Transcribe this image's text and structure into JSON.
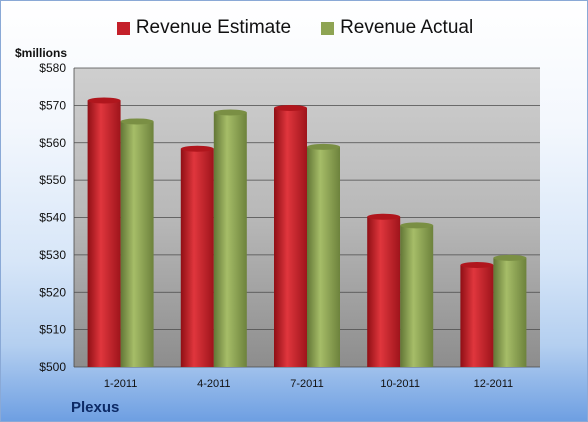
{
  "legend": {
    "estimate_label": "Revenue Estimate",
    "actual_label": "Revenue Actual"
  },
  "unit_label": "$millions",
  "company_label": "Plexus",
  "colors": {
    "estimate": "#c4202a",
    "actual": "#8ea453"
  },
  "chart_data": {
    "type": "bar",
    "title": "",
    "xlabel": "",
    "ylabel": "$millions",
    "categories": [
      "1-2011",
      "4-2011",
      "7-2011",
      "10-2011",
      "12-2011"
    ],
    "series": [
      {
        "name": "Revenue Estimate",
        "values": [
          571.3,
          558.4,
          569.3,
          540.2,
          527.3
        ]
      },
      {
        "name": "Revenue Actual",
        "values": [
          565.7,
          568.1,
          558.9,
          537.9,
          529.2
        ]
      }
    ],
    "ylim": [
      500,
      580
    ],
    "yticks": [
      500,
      510,
      520,
      530,
      540,
      550,
      560,
      570,
      580
    ],
    "ytick_labels": [
      "$500",
      "$510",
      "$520",
      "$530",
      "$540",
      "$550",
      "$560",
      "$570",
      "$580"
    ],
    "grid": true,
    "legend_position": "top"
  }
}
